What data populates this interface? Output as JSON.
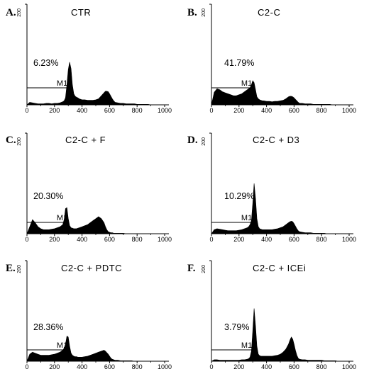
{
  "figure": {
    "panels": [
      {
        "label": "A.",
        "title": "CTR",
        "percent": "6.23%"
      },
      {
        "label": "B.",
        "title": "C2-C",
        "percent": "41.79%"
      },
      {
        "label": "C.",
        "title": "C2-C + F",
        "percent": "20.30%"
      },
      {
        "label": "D.",
        "title": "C2-C + D3",
        "percent": "10.29%"
      },
      {
        "label": "E.",
        "title": "C2-C + PDTC",
        "percent": "28.36%"
      },
      {
        "label": "F.",
        "title": "C2-C + ICEi",
        "percent": "3.79%"
      }
    ]
  },
  "chart_data": [
    {
      "type": "area",
      "title": "CTR",
      "annotation": "6.23%",
      "marker": {
        "label": "M1",
        "range": [
          0,
          300
        ]
      },
      "xlim": [
        0,
        1000
      ],
      "ylim": [
        0,
        200
      ],
      "xticks": [
        "0",
        "200",
        "400",
        "600",
        "800",
        "1000"
      ],
      "ytick_max": "200",
      "x": [
        0,
        20,
        40,
        60,
        80,
        100,
        120,
        140,
        160,
        180,
        200,
        220,
        240,
        260,
        270,
        280,
        290,
        300,
        310,
        320,
        330,
        340,
        350,
        360,
        370,
        380,
        400,
        420,
        440,
        460,
        480,
        500,
        520,
        540,
        560,
        570,
        580,
        590,
        600,
        610,
        620,
        630,
        640,
        660,
        680,
        700,
        720,
        740,
        760,
        780,
        800,
        820,
        840,
        860,
        880,
        900,
        920,
        940,
        960,
        980,
        1000
      ],
      "y": [
        0,
        5,
        4,
        3,
        2,
        2,
        2,
        3,
        3,
        2,
        3,
        3,
        4,
        6,
        8,
        14,
        40,
        70,
        85,
        72,
        40,
        22,
        17,
        15,
        14,
        12,
        10,
        10,
        9,
        9,
        9,
        10,
        12,
        18,
        24,
        27,
        27,
        26,
        22,
        17,
        12,
        8,
        5,
        4,
        3,
        3,
        2,
        2,
        2,
        2,
        1,
        1,
        1,
        1,
        1,
        0,
        0,
        0,
        0,
        0,
        0
      ]
    },
    {
      "type": "area",
      "title": "C2-C",
      "annotation": "41.79%",
      "marker": {
        "label": "M1",
        "range": [
          0,
          300
        ]
      },
      "xlim": [
        0,
        1000
      ],
      "ylim": [
        0,
        200
      ],
      "xticks": [
        "0",
        "200",
        "400",
        "600",
        "800",
        "1000"
      ],
      "ytick_max": "200",
      "x": [
        0,
        20,
        40,
        60,
        80,
        100,
        120,
        140,
        160,
        180,
        200,
        220,
        240,
        260,
        270,
        280,
        290,
        300,
        310,
        320,
        330,
        340,
        350,
        360,
        370,
        380,
        400,
        420,
        440,
        460,
        480,
        500,
        520,
        540,
        560,
        570,
        580,
        590,
        600,
        610,
        620,
        630,
        640,
        660,
        680,
        700,
        720,
        740,
        760,
        780,
        800,
        820,
        840,
        860,
        880,
        900,
        920,
        940,
        960,
        980,
        1000
      ],
      "y": [
        0,
        25,
        32,
        30,
        26,
        24,
        22,
        20,
        18,
        18,
        20,
        22,
        26,
        30,
        32,
        34,
        40,
        48,
        44,
        30,
        16,
        12,
        10,
        9,
        8,
        8,
        7,
        7,
        6,
        7,
        7,
        8,
        9,
        12,
        16,
        17,
        17,
        16,
        14,
        11,
        8,
        5,
        3,
        3,
        2,
        2,
        2,
        1,
        1,
        1,
        1,
        1,
        1,
        1,
        0,
        0,
        0,
        0,
        0,
        0,
        0
      ]
    },
    {
      "type": "area",
      "title": "C2-C + F",
      "annotation": "20.30%",
      "marker": {
        "label": "M1",
        "range": [
          0,
          300
        ]
      },
      "xlim": [
        0,
        1000
      ],
      "ylim": [
        0,
        200
      ],
      "xticks": [
        "0",
        "200",
        "400",
        "600",
        "800",
        "1000"
      ],
      "ytick_max": "200",
      "x": [
        0,
        20,
        40,
        60,
        80,
        100,
        120,
        140,
        160,
        180,
        200,
        220,
        240,
        260,
        270,
        280,
        290,
        300,
        310,
        320,
        330,
        340,
        350,
        360,
        370,
        380,
        400,
        420,
        440,
        460,
        480,
        500,
        520,
        540,
        560,
        570,
        580,
        590,
        600,
        610,
        620,
        630,
        640,
        660,
        680,
        700,
        720,
        740,
        760,
        780,
        800,
        820,
        840,
        860,
        880,
        900,
        920,
        940,
        960,
        980,
        1000
      ],
      "y": [
        0,
        14,
        28,
        22,
        14,
        10,
        8,
        8,
        8,
        9,
        10,
        12,
        14,
        18,
        28,
        50,
        52,
        30,
        16,
        12,
        11,
        10,
        10,
        10,
        11,
        12,
        14,
        16,
        18,
        22,
        26,
        30,
        34,
        30,
        22,
        14,
        8,
        4,
        3,
        2,
        2,
        1,
        1,
        1,
        1,
        1,
        0,
        0,
        0,
        0,
        0,
        0,
        0,
        0,
        0,
        0,
        0,
        0,
        0,
        0,
        0
      ]
    },
    {
      "type": "area",
      "title": "C2-C + D3",
      "annotation": "10.29%",
      "marker": {
        "label": "M1",
        "range": [
          0,
          300
        ]
      },
      "xlim": [
        0,
        1000
      ],
      "ylim": [
        0,
        200
      ],
      "xticks": [
        "0",
        "200",
        "400",
        "600",
        "800",
        "1000"
      ],
      "ytick_max": "200",
      "x": [
        0,
        20,
        40,
        60,
        80,
        100,
        120,
        140,
        160,
        180,
        200,
        220,
        240,
        260,
        270,
        280,
        290,
        300,
        310,
        320,
        330,
        340,
        350,
        360,
        370,
        380,
        400,
        420,
        440,
        460,
        480,
        500,
        520,
        540,
        560,
        570,
        580,
        590,
        600,
        610,
        620,
        630,
        640,
        660,
        680,
        700,
        720,
        740,
        760,
        780,
        800,
        820,
        840,
        860,
        880,
        900,
        920,
        940,
        960,
        980,
        1000
      ],
      "y": [
        0,
        8,
        10,
        9,
        8,
        7,
        6,
        6,
        6,
        6,
        7,
        8,
        10,
        12,
        14,
        18,
        26,
        60,
        100,
        70,
        30,
        14,
        10,
        9,
        8,
        8,
        8,
        8,
        8,
        9,
        10,
        12,
        14,
        18,
        22,
        24,
        25,
        24,
        20,
        15,
        10,
        6,
        4,
        3,
        2,
        2,
        2,
        1,
        1,
        1,
        1,
        1,
        0,
        0,
        0,
        0,
        0,
        0,
        0,
        0,
        0
      ]
    },
    {
      "type": "area",
      "title": "C2-C + PDTC",
      "annotation": "28.36%",
      "marker": {
        "label": "M1",
        "range": [
          0,
          300
        ]
      },
      "xlim": [
        0,
        1000
      ],
      "ylim": [
        0,
        200
      ],
      "xticks": [
        "0",
        "200",
        "400",
        "600",
        "800",
        "1000"
      ],
      "ytick_max": "200",
      "x": [
        0,
        20,
        40,
        60,
        80,
        100,
        120,
        140,
        160,
        180,
        200,
        220,
        240,
        260,
        270,
        280,
        290,
        300,
        310,
        320,
        330,
        340,
        350,
        360,
        370,
        380,
        400,
        420,
        440,
        460,
        480,
        500,
        520,
        540,
        560,
        570,
        580,
        590,
        600,
        610,
        620,
        630,
        640,
        660,
        680,
        700,
        720,
        740,
        760,
        780,
        800,
        820,
        840,
        860,
        880,
        900,
        920,
        940,
        960,
        980,
        1000
      ],
      "y": [
        0,
        14,
        18,
        16,
        14,
        12,
        12,
        12,
        12,
        13,
        14,
        16,
        18,
        22,
        26,
        34,
        50,
        48,
        30,
        16,
        12,
        10,
        9,
        9,
        8,
        8,
        8,
        9,
        10,
        12,
        14,
        16,
        18,
        20,
        22,
        20,
        17,
        14,
        10,
        6,
        4,
        3,
        2,
        2,
        1,
        1,
        1,
        1,
        1,
        0,
        0,
        0,
        0,
        0,
        0,
        0,
        0,
        0,
        0,
        0,
        0
      ]
    },
    {
      "type": "area",
      "title": "C2-C + ICEi",
      "annotation": "3.79%",
      "marker": {
        "label": "M1",
        "range": [
          0,
          300
        ]
      },
      "xlim": [
        0,
        1000
      ],
      "ylim": [
        0,
        200
      ],
      "xticks": [
        "0",
        "200",
        "400",
        "600",
        "800",
        "1000"
      ],
      "ytick_max": "200",
      "x": [
        0,
        20,
        40,
        60,
        80,
        100,
        120,
        140,
        160,
        180,
        200,
        220,
        240,
        260,
        270,
        280,
        290,
        300,
        310,
        320,
        330,
        340,
        350,
        360,
        370,
        380,
        400,
        420,
        440,
        460,
        480,
        500,
        520,
        540,
        560,
        570,
        580,
        590,
        600,
        610,
        620,
        630,
        640,
        660,
        680,
        700,
        720,
        740,
        760,
        780,
        800,
        820,
        840,
        860,
        880,
        900,
        920,
        940,
        960,
        980,
        1000
      ],
      "y": [
        0,
        3,
        3,
        2,
        2,
        2,
        2,
        2,
        2,
        2,
        2,
        3,
        3,
        4,
        5,
        8,
        20,
        60,
        105,
        70,
        30,
        14,
        11,
        10,
        10,
        10,
        10,
        10,
        10,
        11,
        12,
        14,
        18,
        24,
        34,
        42,
        48,
        44,
        34,
        22,
        12,
        6,
        4,
        3,
        3,
        2,
        2,
        2,
        2,
        2,
        2,
        1,
        1,
        1,
        1,
        1,
        0,
        0,
        0,
        0,
        0
      ]
    }
  ]
}
